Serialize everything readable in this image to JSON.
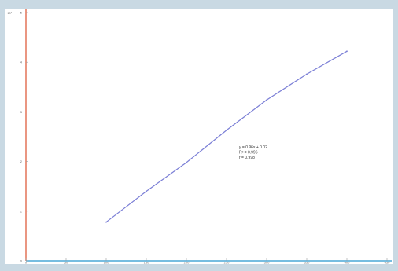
{
  "chart_data": {
    "type": "line",
    "title": "",
    "xlabel": "",
    "ylabel": "",
    "xlim": [
      0,
      450
    ],
    "ylim": [
      0,
      5
    ],
    "x_ticks": [
      0,
      50,
      100,
      150,
      200,
      250,
      300,
      350,
      400,
      450
    ],
    "x_tick_labels": [
      "0",
      "50",
      "100",
      "150",
      "200",
      "250",
      "300",
      "350",
      "400",
      "450"
    ],
    "y_ticks": [
      0,
      1,
      2,
      3,
      4,
      5
    ],
    "y_tick_labels": [
      "0",
      "1",
      "2",
      "3",
      "4",
      "5"
    ],
    "y_unit_label": "·10³",
    "grid": false,
    "series": [
      {
        "x": [
          100,
          150,
          200,
          250,
          300,
          350,
          400
        ],
        "y": [
          0.78,
          1.4,
          1.98,
          2.63,
          3.24,
          3.76,
          4.22
        ],
        "color": "#7b7fd6"
      }
    ],
    "annotation": {
      "lines": [
        "y = 0.96x + 0.02",
        "R² = 0.996",
        "r = 0.998"
      ]
    },
    "colors": {
      "y_axis": "#e06a4c",
      "x_axis": "#4aa7d6",
      "line": "#7b7fd6"
    }
  }
}
